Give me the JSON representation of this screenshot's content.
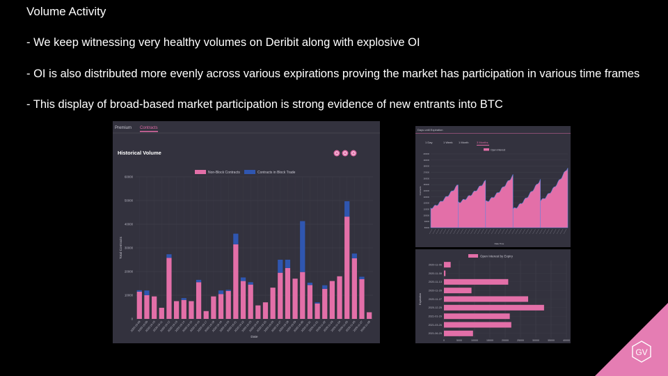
{
  "slide": {
    "title": "Volume Activity",
    "bullets": [
      "- We keep witnessing very healthy volumes on Deribit along with explosive OI",
      "- OI is also distributed more evenly across various expirations proving the market has participation in various time frames",
      "- This display of broad-based market participation is strong evidence of new entrants into BTC"
    ]
  },
  "main_panel": {
    "tabs": [
      {
        "label": "Premium",
        "active": false
      },
      {
        "label": "Contracts",
        "active": true
      }
    ],
    "icons": [
      "zoom-in-icon",
      "zoom-out-icon",
      "download-icon"
    ]
  },
  "oi_panel": {
    "header": "Days until Expiration",
    "tabs": [
      {
        "label": "1 Day",
        "active": false
      },
      {
        "label": "1 Week",
        "active": false
      },
      {
        "label": "1 Month",
        "active": false
      },
      {
        "label": "3 Months",
        "active": true
      }
    ]
  },
  "logo": {
    "text": "GV"
  },
  "colors": {
    "pink": "#e36fa8",
    "blue": "#2f56b0",
    "panel": "#33323e",
    "accent": "#e06aa5"
  },
  "chart_data": [
    {
      "type": "bar",
      "stacked": true,
      "title": "Historical Volume",
      "xlabel": "Date",
      "ylabel": "Total Contracts",
      "ylim": [
        0,
        60000
      ],
      "yticks": [
        0,
        10000,
        20000,
        30000,
        40000,
        50000,
        60000
      ],
      "grid": true,
      "legend_position": "top",
      "categories": [
        "2020-10-08",
        "2020-10-09",
        "2020-10-10",
        "2020-10-11",
        "2020-10-12",
        "2020-10-13",
        "2020-10-14",
        "2020-10-15",
        "2020-10-16",
        "2020-10-17",
        "2020-10-18",
        "2020-10-19",
        "2020-10-20",
        "2020-10-21",
        "2020-10-22",
        "2020-10-23",
        "2020-10-24",
        "2020-10-25",
        "2020-10-26",
        "2020-10-27",
        "2020-10-28",
        "2020-10-29",
        "2020-10-30",
        "2020-10-31",
        "2020-11-01",
        "2020-11-02",
        "2020-11-03",
        "2020-11-04",
        "2020-11-05",
        "2020-11-06",
        "2020-11-07",
        "2020-11-08"
      ],
      "series": [
        {
          "name": "Non-Block Contracts",
          "values": [
            11500,
            10000,
            9500,
            4700,
            25800,
            7500,
            8000,
            7500,
            15500,
            3300,
            9500,
            10500,
            11800,
            31500,
            16000,
            14500,
            5700,
            7000,
            13200,
            19500,
            21500,
            17000,
            19800,
            14300,
            6500,
            12700,
            16000,
            18000,
            43200,
            25600,
            16800,
            2800
          ]
        },
        {
          "name": "Contracts in Block Trade",
          "values": [
            600,
            2000,
            0,
            0,
            1500,
            0,
            800,
            0,
            1000,
            0,
            0,
            1500,
            500,
            4500,
            1500,
            1000,
            0,
            0,
            0,
            5500,
            3500,
            0,
            21500,
            1000,
            500,
            1500,
            0,
            0,
            6500,
            2000,
            1000,
            0
          ]
        }
      ]
    },
    {
      "type": "area",
      "legend": [
        "Open Interest"
      ],
      "xlabel": "Date Time",
      "ylabel": "Contracts",
      "ylim": [
        80000,
        200000
      ],
      "yticks": [
        80000,
        90000,
        100000,
        110000,
        120000,
        130000,
        140000,
        150000,
        160000,
        170000,
        180000,
        190000,
        200000
      ],
      "segments": [
        {
          "start": 112000,
          "end": 150000
        },
        {
          "start": 121000,
          "end": 156000
        },
        {
          "start": 122000,
          "end": 165000
        },
        {
          "start": 110000,
          "end": 158000
        },
        {
          "start": 124000,
          "end": 178000
        }
      ]
    },
    {
      "type": "bar",
      "orientation": "horizontal",
      "legend": [
        "Open Interest by Expiry"
      ],
      "ylabel": "Expiration",
      "xlim": [
        0,
        40000
      ],
      "xticks": [
        0,
        5000,
        10000,
        15000,
        20000,
        25000,
        30000,
        35000,
        40000
      ],
      "categories": [
        "2020-11-06",
        "2020-11-08",
        "2020-11-13",
        "2020-11-20",
        "2020-11-27",
        "2020-12-25",
        "2021-01-29",
        "2021-03-26",
        "2021-06-25"
      ],
      "values": [
        2200,
        500,
        21000,
        9000,
        27500,
        32700,
        21500,
        22000,
        9500
      ]
    }
  ]
}
